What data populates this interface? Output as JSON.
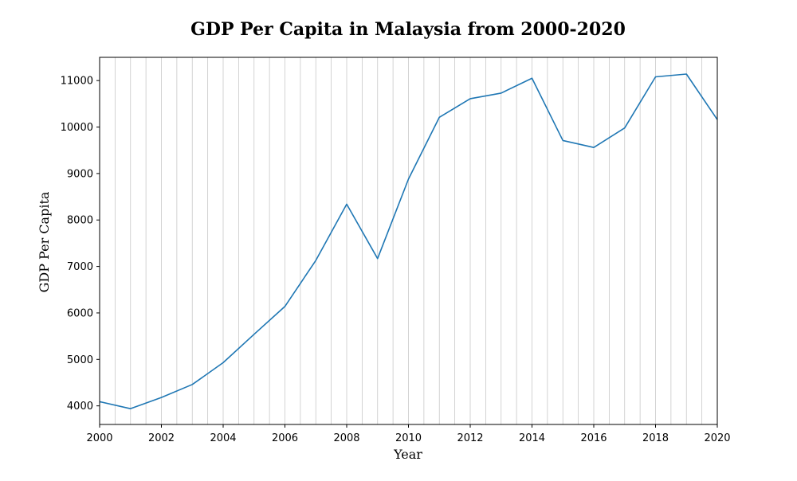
{
  "chart_data": {
    "type": "line",
    "title": "GDP Per Capita in Malaysia from 2000-2020",
    "xlabel": "Year",
    "ylabel": "GDP Per Capita",
    "xlim": [
      2000,
      2020
    ],
    "ylim": [
      3600,
      11500
    ],
    "x_ticks": [
      2000,
      2002,
      2004,
      2006,
      2008,
      2010,
      2012,
      2014,
      2016,
      2018,
      2020
    ],
    "y_ticks": [
      4000,
      5000,
      6000,
      7000,
      8000,
      9000,
      10000,
      11000
    ],
    "x_grid": true,
    "x_grid_step": 0.5,
    "y_grid": false,
    "legend": "none",
    "series": [
      {
        "color": "#1f77b4",
        "x": [
          2000,
          2001,
          2002,
          2003,
          2004,
          2005,
          2006,
          2007,
          2008,
          2009,
          2010,
          2011,
          2012,
          2013,
          2014,
          2015,
          2016,
          2017,
          2018,
          2019,
          2020
        ],
        "y": [
          4090,
          3940,
          4180,
          4460,
          4930,
          5540,
          6140,
          7130,
          8340,
          7170,
          8880,
          10210,
          10610,
          10730,
          11050,
          9710,
          9560,
          9980,
          11080,
          11140,
          10160
        ]
      }
    ]
  }
}
